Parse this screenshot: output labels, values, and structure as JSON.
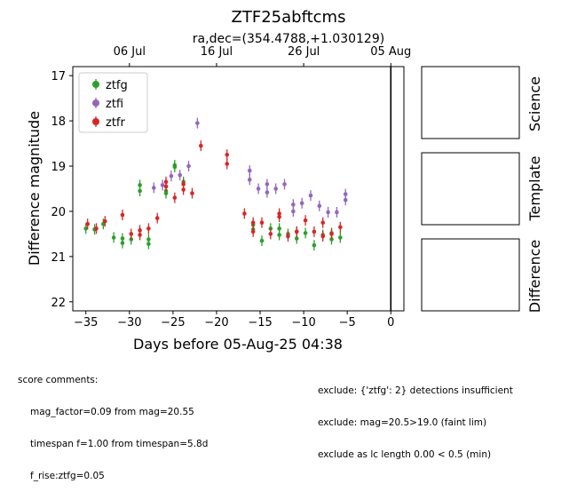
{
  "chart_data": {
    "type": "scatter",
    "title": "ZTF25abftcms",
    "subtitle": "ra,dec=(354.4788,+1.030129)",
    "xlabel": "Days before 05-Aug-25 04:38",
    "ylabel": "Difference magnitude",
    "xlim": [
      -36.5,
      1.5
    ],
    "ylim": [
      22.2,
      16.8
    ],
    "y_inverted": true,
    "xticks": [
      -35,
      -30,
      -25,
      -20,
      -15,
      -10,
      -5,
      0
    ],
    "xtick_labels": [
      "−35",
      "−30",
      "−25",
      "−20",
      "−15",
      "−10",
      "−5",
      "0"
    ],
    "yticks": [
      17,
      18,
      19,
      20,
      21,
      22
    ],
    "ytick_labels": [
      "17",
      "18",
      "19",
      "20",
      "21",
      "22"
    ],
    "top_axis_ticks": [
      {
        "x": -30,
        "label": "06 Jul"
      },
      {
        "x": -20,
        "label": "16 Jul"
      },
      {
        "x": -10,
        "label": "26 Jul"
      },
      {
        "x": 0,
        "label": "05 Aug"
      }
    ],
    "vline_x": 0,
    "grid": false,
    "legend_position": "top-left",
    "series": [
      {
        "name": "ztfg",
        "color": "#2ca02c",
        "points": [
          {
            "x": -35.0,
            "y": 20.38
          },
          {
            "x": -34.0,
            "y": 20.4
          },
          {
            "x": -33.0,
            "y": 20.28
          },
          {
            "x": -31.8,
            "y": 20.58
          },
          {
            "x": -30.8,
            "y": 20.6
          },
          {
            "x": -30.8,
            "y": 20.7
          },
          {
            "x": -29.8,
            "y": 20.62
          },
          {
            "x": -28.8,
            "y": 19.42
          },
          {
            "x": -28.8,
            "y": 19.55
          },
          {
            "x": -27.8,
            "y": 20.62
          },
          {
            "x": -27.8,
            "y": 20.72
          },
          {
            "x": -25.8,
            "y": 19.55
          },
          {
            "x": -25.8,
            "y": 19.6
          },
          {
            "x": -24.8,
            "y": 19.02
          },
          {
            "x": -24.8,
            "y": 18.98
          },
          {
            "x": -23.8,
            "y": 19.35
          },
          {
            "x": -15.8,
            "y": 20.3
          },
          {
            "x": -15.8,
            "y": 20.4
          },
          {
            "x": -14.8,
            "y": 20.65
          },
          {
            "x": -13.8,
            "y": 20.38
          },
          {
            "x": -12.8,
            "y": 20.38
          },
          {
            "x": -12.8,
            "y": 20.52
          },
          {
            "x": -11.8,
            "y": 20.5
          },
          {
            "x": -10.8,
            "y": 20.45
          },
          {
            "x": -10.8,
            "y": 20.6
          },
          {
            "x": -9.8,
            "y": 20.48
          },
          {
            "x": -8.8,
            "y": 20.75
          },
          {
            "x": -7.8,
            "y": 20.52
          },
          {
            "x": -6.8,
            "y": 20.48
          },
          {
            "x": -6.8,
            "y": 20.62
          },
          {
            "x": -5.8,
            "y": 20.58
          }
        ]
      },
      {
        "name": "ztfi",
        "color": "#9467bd",
        "points": [
          {
            "x": -27.2,
            "y": 19.48
          },
          {
            "x": -26.2,
            "y": 19.42
          },
          {
            "x": -25.2,
            "y": 19.22
          },
          {
            "x": -24.2,
            "y": 19.2
          },
          {
            "x": -23.2,
            "y": 19.0
          },
          {
            "x": -22.2,
            "y": 18.05
          },
          {
            "x": -16.2,
            "y": 19.1
          },
          {
            "x": -16.2,
            "y": 19.3
          },
          {
            "x": -15.2,
            "y": 19.5
          },
          {
            "x": -14.2,
            "y": 19.4
          },
          {
            "x": -14.2,
            "y": 19.58
          },
          {
            "x": -13.2,
            "y": 19.5
          },
          {
            "x": -12.2,
            "y": 19.4
          },
          {
            "x": -11.2,
            "y": 19.85
          },
          {
            "x": -11.2,
            "y": 20.0
          },
          {
            "x": -10.2,
            "y": 19.82
          },
          {
            "x": -9.2,
            "y": 19.65
          },
          {
            "x": -8.2,
            "y": 19.88
          },
          {
            "x": -7.2,
            "y": 20.02
          },
          {
            "x": -6.2,
            "y": 20.02
          },
          {
            "x": -5.2,
            "y": 19.62
          },
          {
            "x": -5.2,
            "y": 19.75
          }
        ]
      },
      {
        "name": "ztfr",
        "color": "#d62728",
        "points": [
          {
            "x": -34.8,
            "y": 20.28
          },
          {
            "x": -33.8,
            "y": 20.38
          },
          {
            "x": -32.8,
            "y": 20.22
          },
          {
            "x": -30.8,
            "y": 20.08
          },
          {
            "x": -29.8,
            "y": 20.5
          },
          {
            "x": -28.8,
            "y": 20.42
          },
          {
            "x": -28.8,
            "y": 20.52
          },
          {
            "x": -27.8,
            "y": 20.38
          },
          {
            "x": -26.8,
            "y": 20.15
          },
          {
            "x": -25.8,
            "y": 19.35
          },
          {
            "x": -25.8,
            "y": 19.45
          },
          {
            "x": -24.8,
            "y": 19.7
          },
          {
            "x": -23.8,
            "y": 19.4
          },
          {
            "x": -23.8,
            "y": 19.52
          },
          {
            "x": -22.8,
            "y": 19.6
          },
          {
            "x": -21.8,
            "y": 18.55
          },
          {
            "x": -18.8,
            "y": 18.75
          },
          {
            "x": -18.8,
            "y": 18.95
          },
          {
            "x": -16.8,
            "y": 20.05
          },
          {
            "x": -15.8,
            "y": 20.25
          },
          {
            "x": -15.8,
            "y": 20.45
          },
          {
            "x": -14.8,
            "y": 20.25
          },
          {
            "x": -13.8,
            "y": 20.5
          },
          {
            "x": -12.8,
            "y": 20.05
          },
          {
            "x": -12.8,
            "y": 20.12
          },
          {
            "x": -11.8,
            "y": 20.55
          },
          {
            "x": -10.8,
            "y": 20.45
          },
          {
            "x": -9.8,
            "y": 20.2
          },
          {
            "x": -8.8,
            "y": 20.45
          },
          {
            "x": -7.8,
            "y": 20.25
          },
          {
            "x": -7.8,
            "y": 20.55
          },
          {
            "x": -6.8,
            "y": 20.5
          },
          {
            "x": -5.8,
            "y": 20.35
          }
        ]
      }
    ]
  },
  "side_panels": [
    {
      "label": "Science"
    },
    {
      "label": "Template"
    },
    {
      "label": "Difference"
    }
  ],
  "comments_left": {
    "heading": "score comments:",
    "lines": [
      "mag_factor=0.09 from mag=20.55",
      "timespan f=1.00 from timespan=5.8d",
      "f_rise:ztfg=0.05"
    ]
  },
  "comments_right": {
    "lines": [
      "exclude: {'ztfg': 2} detections insufficient",
      "exclude: mag=20.5>19.0 (faint lim)",
      "exclude as lc length 0.00 < 0.5 (min)"
    ]
  }
}
